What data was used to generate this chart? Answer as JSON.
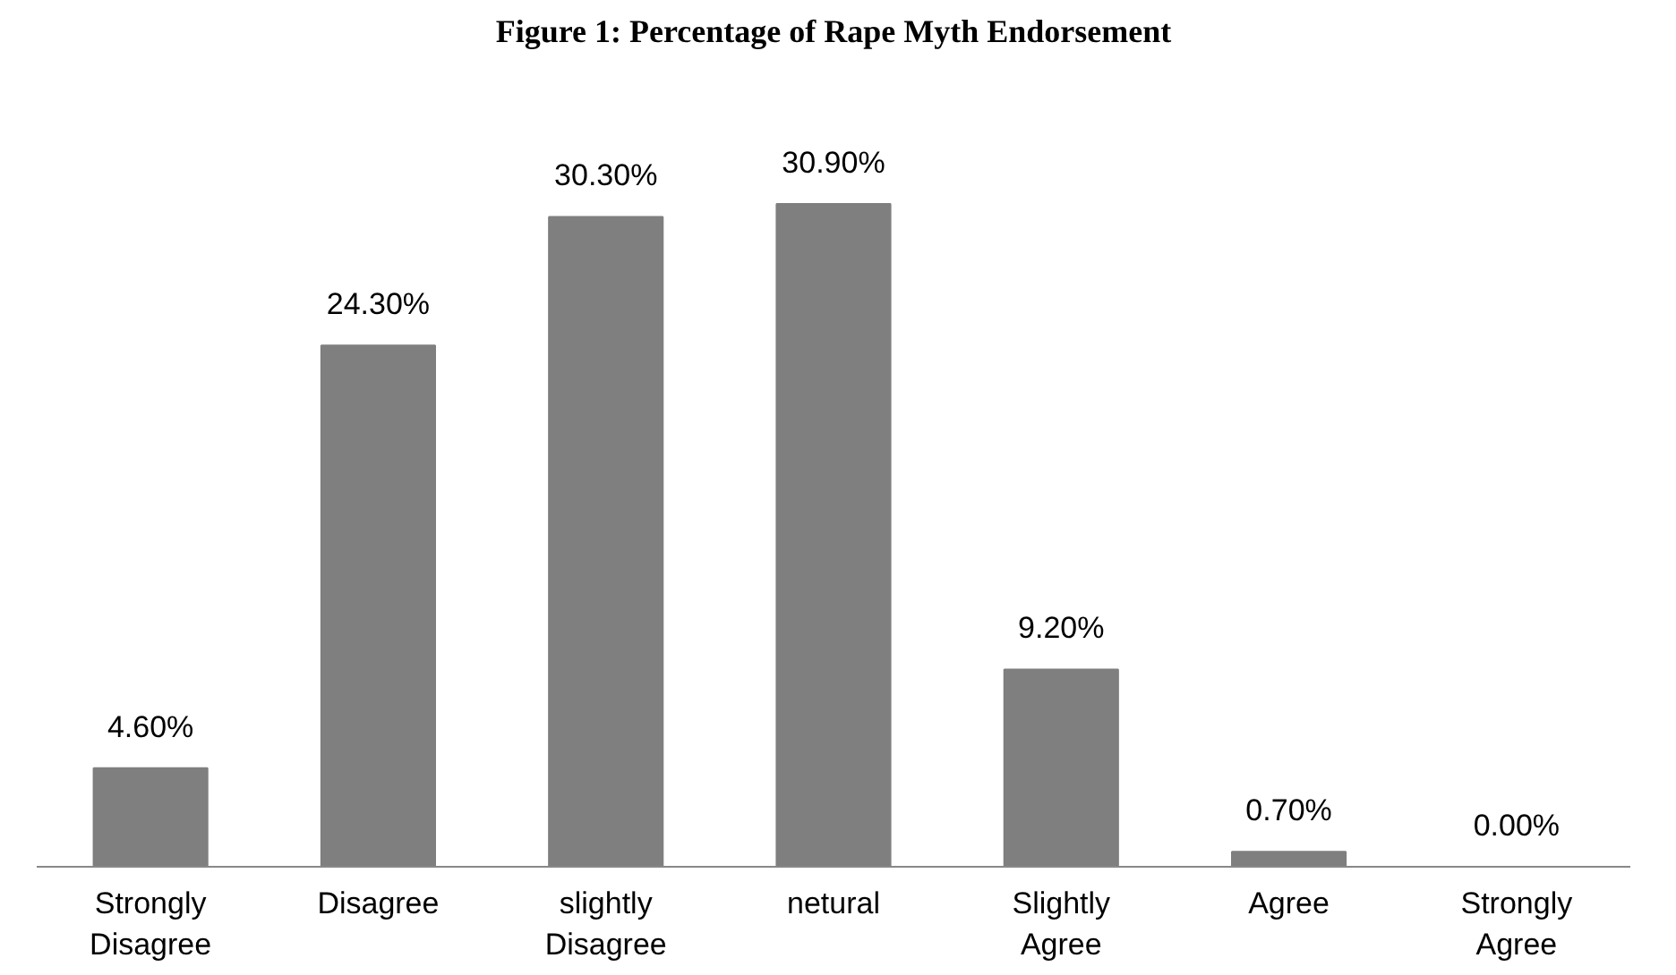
{
  "chart_data": {
    "type": "bar",
    "title": "Figure 1: Percentage of Rape Myth Endorsement",
    "categories": [
      "Strongly Disagree",
      "Disagree",
      "slightly Disagree",
      "netural",
      "Slightly Agree",
      "Agree",
      "Strongly Agree"
    ],
    "values": [
      4.6,
      24.3,
      30.3,
      30.9,
      9.2,
      0.7,
      0.0
    ],
    "value_labels": [
      "4.60%",
      "24.30%",
      "30.30%",
      "30.90%",
      "9.20%",
      "0.70%",
      "0.00%"
    ],
    "color": "#7f7f7f",
    "grid": false
  }
}
